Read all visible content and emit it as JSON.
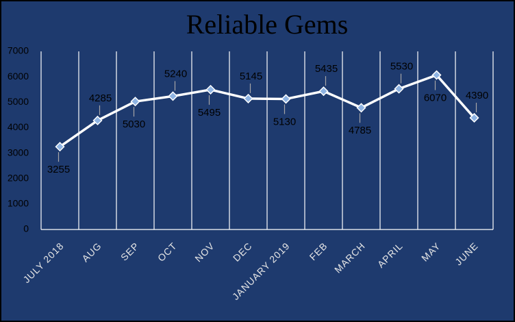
{
  "chart_data": {
    "type": "line",
    "title": "Reliable Gems",
    "categories": [
      "JULY 2018",
      "AUG",
      "SEP",
      "OCT",
      "NOV",
      "DEC",
      "JANUARY 2019",
      "FEB",
      "MARCH",
      "APRIL",
      "MAY",
      "JUNE"
    ],
    "values": [
      3255,
      4285,
      5030,
      5240,
      5495,
      5145,
      5130,
      5435,
      4785,
      5530,
      6070,
      4390
    ],
    "color": "#ffffff",
    "marker_color": "#8fb4e3",
    "ylim": [
      0,
      7000
    ],
    "yticks": [
      0,
      1000,
      2000,
      3000,
      4000,
      5000,
      6000,
      7000
    ],
    "grid": "vertical"
  }
}
